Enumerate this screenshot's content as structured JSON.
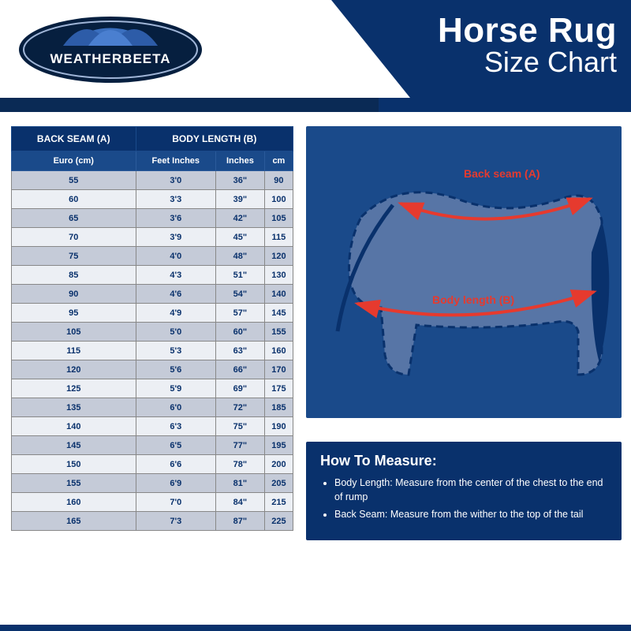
{
  "brand": "WEATHERBEETA",
  "title": {
    "main": "Horse Rug",
    "sub": "Size Chart"
  },
  "colors": {
    "navy_dark": "#09316c",
    "navy_mid": "#1a4a8a",
    "row_even": "#c5cbd8",
    "row_odd": "#eceff4",
    "accent_red": "#e63a2e",
    "white": "#ffffff"
  },
  "table": {
    "header_top": {
      "col_a": "BACK SEAM (A)",
      "col_b": "BODY LENGTH (B)"
    },
    "header_sub": {
      "euro": "Euro (cm)",
      "feet": "Feet Inches",
      "inches": "Inches",
      "cm": "cm"
    },
    "rows": [
      {
        "euro": "55",
        "feet": "3'0",
        "inches": "36\"",
        "cm": "90"
      },
      {
        "euro": "60",
        "feet": "3'3",
        "inches": "39\"",
        "cm": "100"
      },
      {
        "euro": "65",
        "feet": "3'6",
        "inches": "42\"",
        "cm": "105"
      },
      {
        "euro": "70",
        "feet": "3'9",
        "inches": "45\"",
        "cm": "115"
      },
      {
        "euro": "75",
        "feet": "4'0",
        "inches": "48\"",
        "cm": "120"
      },
      {
        "euro": "85",
        "feet": "4'3",
        "inches": "51\"",
        "cm": "130"
      },
      {
        "euro": "90",
        "feet": "4'6",
        "inches": "54\"",
        "cm": "140"
      },
      {
        "euro": "95",
        "feet": "4'9",
        "inches": "57\"",
        "cm": "145"
      },
      {
        "euro": "105",
        "feet": "5'0",
        "inches": "60\"",
        "cm": "155"
      },
      {
        "euro": "115",
        "feet": "5'3",
        "inches": "63\"",
        "cm": "160"
      },
      {
        "euro": "120",
        "feet": "5'6",
        "inches": "66\"",
        "cm": "170"
      },
      {
        "euro": "125",
        "feet": "5'9",
        "inches": "69\"",
        "cm": "175"
      },
      {
        "euro": "135",
        "feet": "6'0",
        "inches": "72\"",
        "cm": "185"
      },
      {
        "euro": "140",
        "feet": "6'3",
        "inches": "75\"",
        "cm": "190"
      },
      {
        "euro": "145",
        "feet": "6'5",
        "inches": "77\"",
        "cm": "195"
      },
      {
        "euro": "150",
        "feet": "6'6",
        "inches": "78\"",
        "cm": "200"
      },
      {
        "euro": "155",
        "feet": "6'9",
        "inches": "81\"",
        "cm": "205"
      },
      {
        "euro": "160",
        "feet": "7'0",
        "inches": "84\"",
        "cm": "215"
      },
      {
        "euro": "165",
        "feet": "7'3",
        "inches": "87\"",
        "cm": "225"
      }
    ]
  },
  "diagram": {
    "label_back_seam": "Back seam (A)",
    "label_body_length": "Body length (B)",
    "outline_color": "#09316c",
    "fill_color": "#8a99bd",
    "arrow_color": "#e63a2e",
    "dash": "8,6",
    "stroke_width": 3
  },
  "howto": {
    "title": "How To Measure:",
    "items": [
      "Body Length: Measure from the center of the chest to the end of rump",
      "Back Seam: Measure from the wither to the top of the tail"
    ]
  }
}
